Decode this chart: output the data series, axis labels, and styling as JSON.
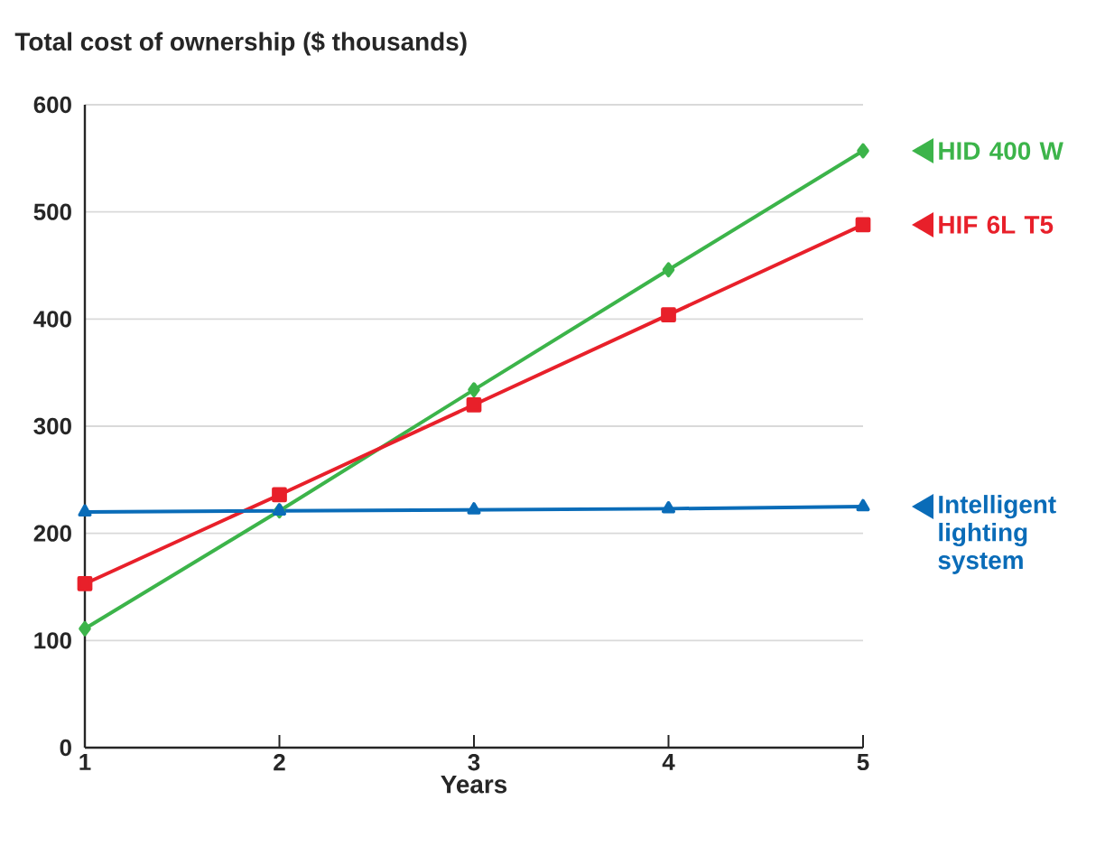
{
  "chart_data": {
    "type": "line",
    "ylabel": "Total cost of ownership ($ thousands)",
    "xlabel": "Years",
    "x": [
      1,
      2,
      3,
      4,
      5
    ],
    "xlim": [
      1,
      5
    ],
    "xticks": [
      1,
      2,
      3,
      4,
      5
    ],
    "ylim": [
      0,
      600
    ],
    "yticks": [
      0,
      100,
      200,
      300,
      400,
      500,
      600
    ],
    "grid": "y",
    "legend": "right",
    "line_style": "solid",
    "series": [
      {
        "name": "HID 400 W",
        "color": "#3cb44a",
        "marker": "diamond",
        "values": [
          111,
          221,
          334,
          446,
          557
        ]
      },
      {
        "name": "HIF 6L T5",
        "color": "#e8202a",
        "marker": "square",
        "values": [
          153,
          236,
          320,
          404,
          488
        ]
      },
      {
        "name": "Intelligent lighting system",
        "color": "#0a6cb8",
        "marker": "triangle",
        "values": [
          220,
          221,
          222,
          223,
          225
        ]
      }
    ]
  }
}
